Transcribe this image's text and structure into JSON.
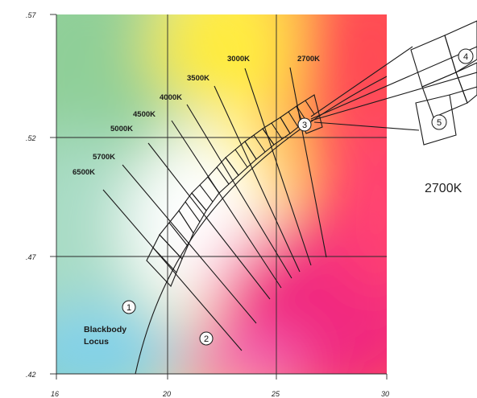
{
  "axes": {
    "x_ticks": [
      "16",
      "20",
      "25",
      "30"
    ],
    "y_ticks": [
      ".57",
      ".52",
      ".47",
      ".42"
    ]
  },
  "cct_labels": {
    "k2700": "2700K",
    "k3000": "3000K",
    "k3500": "3500K",
    "k4000": "4000K",
    "k4500": "4500K",
    "k5000": "5000K",
    "k5700": "5700K",
    "k6500": "6500K"
  },
  "locus_label_line1": "Blackbody",
  "locus_label_line2": "Locus",
  "markers": {
    "m1": "1",
    "m2": "2",
    "m3": "3",
    "m4": "4",
    "m5": "5"
  },
  "inset_caption": "2700K"
}
